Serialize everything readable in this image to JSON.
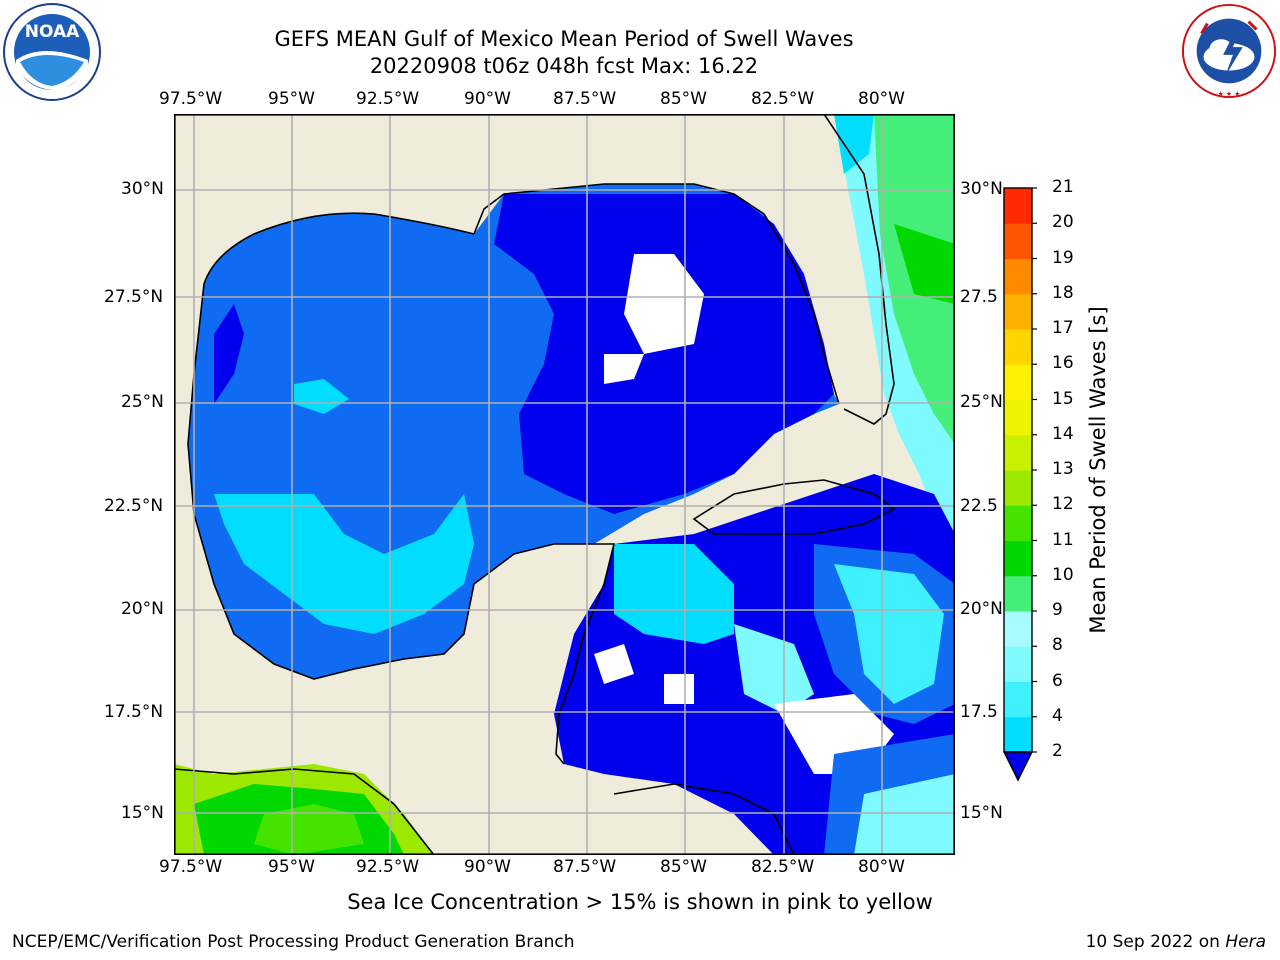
{
  "title": {
    "line1": "GEFS MEAN Gulf of Mexico Mean Period of Swell Waves",
    "line2": "20220908 t06z 048h fcst   Max: 16.22"
  },
  "logos": {
    "left": {
      "name": "noaa-logo",
      "text": "NOAA",
      "ring_text": "NATIONAL OCEANIC AND ATMOSPHERIC ADMINISTRATION · U.S. DEPARTMENT OF COMMERCE"
    },
    "right": {
      "name": "nws-logo",
      "ring_text": "NATIONAL WEATHER SERVICE"
    }
  },
  "map": {
    "lon_labels": [
      "97.5°W",
      "95°W",
      "92.5°W",
      "90°W",
      "87.5°W",
      "85°W",
      "82.5°W",
      "80°W"
    ],
    "lat_labels_left": [
      "30°N",
      "27.5°N",
      "25°N",
      "22.5°N",
      "20°N",
      "17.5°N",
      "15°N"
    ],
    "lat_labels_right": [
      "30°N",
      "27.5",
      "25°N",
      "22.5",
      "20°N",
      "17.5",
      "15°N"
    ],
    "land_color": "#efecdc",
    "gridline_color": "#b0b0b0"
  },
  "colorbar": {
    "title": "Mean Period of Swell Waves [s]",
    "ticks": [
      "2",
      "4",
      "6",
      "8",
      "9",
      "10",
      "11",
      "12",
      "13",
      "14",
      "15",
      "16",
      "17",
      "18",
      "19",
      "20",
      "21"
    ],
    "colors": [
      "#0f6cf2",
      "#00ddff",
      "#3ff0ff",
      "#7ffaff",
      "#a8fbff",
      "#45ee78",
      "#00d800",
      "#44e400",
      "#9ce800",
      "#c8f000",
      "#eef400",
      "#fff200",
      "#ffd400",
      "#ffb000",
      "#ff8a00",
      "#ff5500",
      "#ff2a00",
      "#ff0000"
    ],
    "under_color": "#0000ee"
  },
  "note": "Sea Ice Concentration > 15% is shown in pink to yellow",
  "footer": {
    "left": "NCEP/EMC/Verification Post Processing Product Generation Branch",
    "right_date": "10 Sep 2022 on ",
    "right_machine": "Hera"
  }
}
